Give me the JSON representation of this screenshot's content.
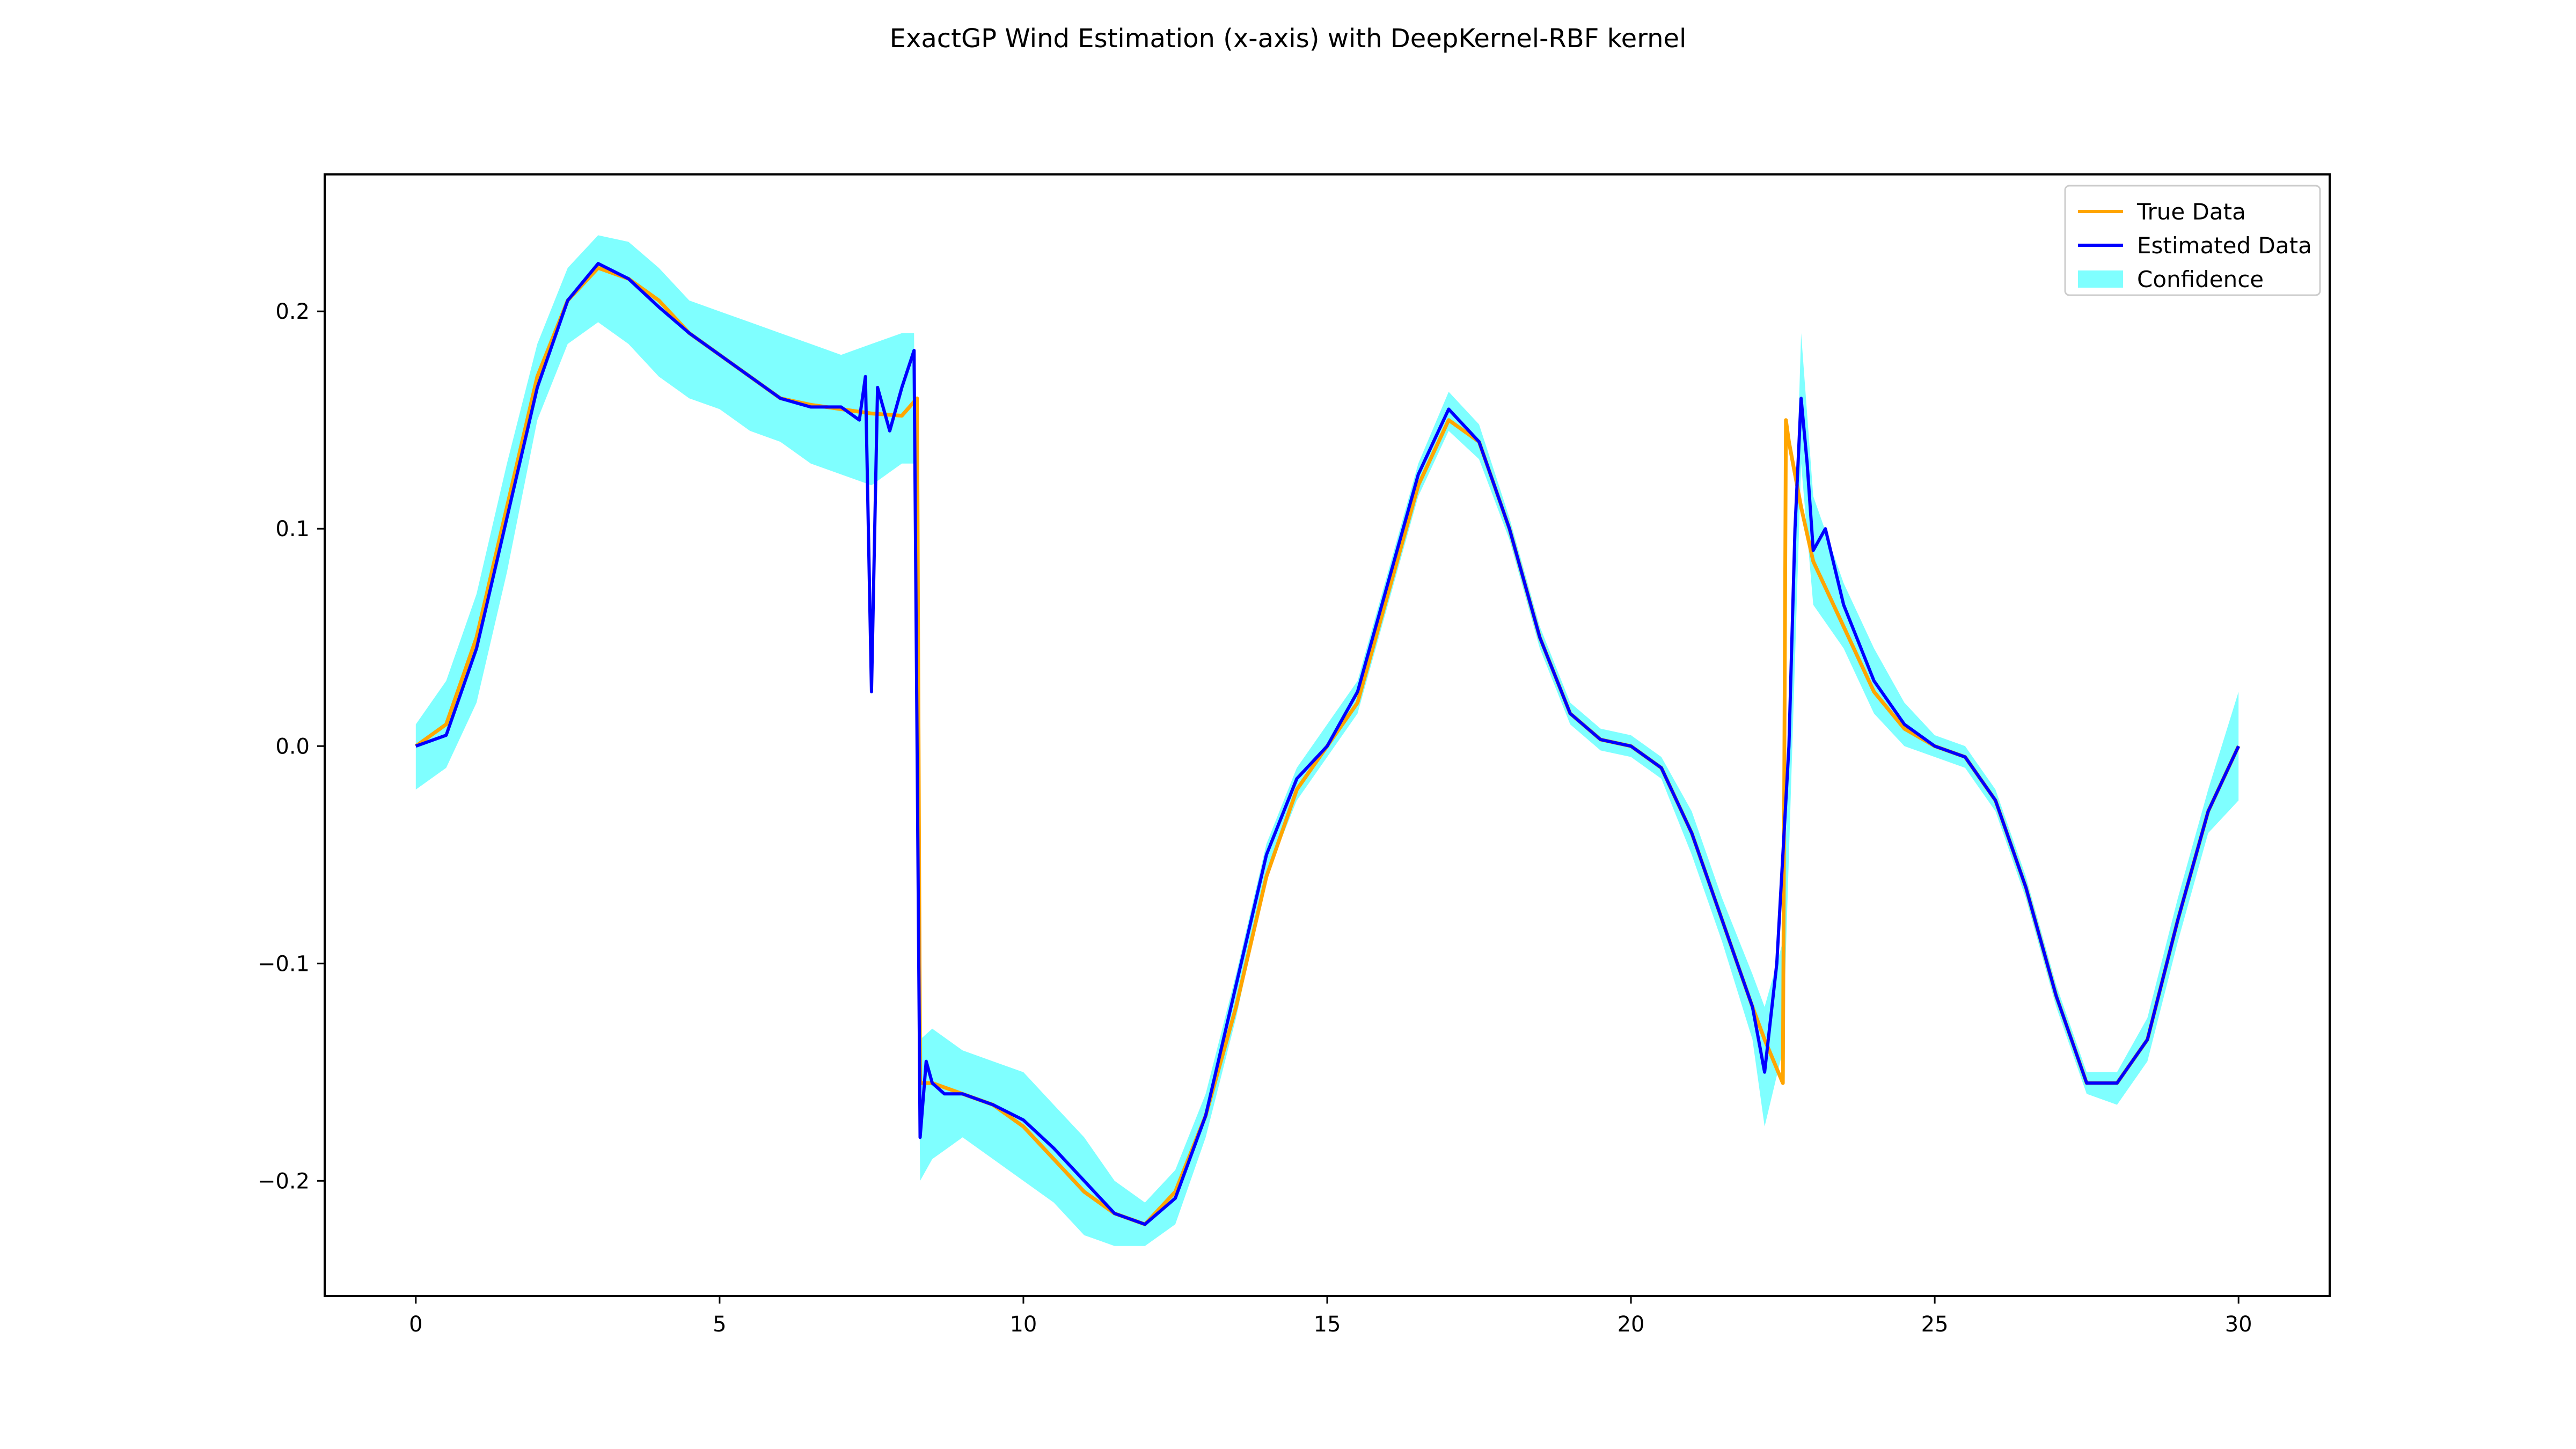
{
  "chart_data": {
    "type": "line",
    "title": "ExactGP Wind Estimation (x-axis) with DeepKernel-RBF kernel",
    "xlabel": "",
    "ylabel": "",
    "xlim": [
      -1.5,
      31.5
    ],
    "ylim": [
      -0.253,
      0.263
    ],
    "x_ticks": [
      0,
      5,
      10,
      15,
      20,
      25,
      30
    ],
    "x_tick_labels": [
      "0",
      "5",
      "10",
      "15",
      "20",
      "25",
      "30"
    ],
    "y_ticks": [
      -0.2,
      -0.1,
      0.0,
      0.1,
      0.2
    ],
    "y_tick_labels": [
      "−0.2",
      "−0.1",
      "0.0",
      "0.1",
      "0.2"
    ],
    "grid": false,
    "legend_position": "top-right",
    "series": [
      {
        "name": "True Data",
        "color": "#ffa500",
        "x": [
          0,
          0.5,
          1,
          1.5,
          2,
          2.5,
          3,
          3.5,
          4,
          4.5,
          5,
          5.5,
          6,
          6.5,
          7,
          7.5,
          8,
          8.25,
          8.3,
          8.5,
          9,
          9.5,
          10,
          10.5,
          11,
          11.5,
          12,
          12.5,
          13,
          13.5,
          14,
          14.5,
          15,
          15.5,
          16,
          16.5,
          17,
          17.5,
          18,
          18.5,
          19,
          19.5,
          20,
          20.5,
          21,
          21.5,
          22,
          22.2,
          22.5,
          22.55,
          22.6,
          22.8,
          23,
          23.5,
          24,
          24.5,
          25,
          25.5,
          26,
          26.5,
          27,
          27.5,
          28,
          28.5,
          29,
          29.5,
          30
        ],
        "y": [
          0.0,
          0.01,
          0.05,
          0.11,
          0.17,
          0.205,
          0.22,
          0.215,
          0.205,
          0.19,
          0.18,
          0.17,
          0.16,
          0.157,
          0.155,
          0.153,
          0.152,
          0.16,
          -0.155,
          -0.155,
          -0.16,
          -0.165,
          -0.175,
          -0.19,
          -0.205,
          -0.215,
          -0.22,
          -0.205,
          -0.17,
          -0.12,
          -0.06,
          -0.02,
          0.0,
          0.02,
          0.07,
          0.12,
          0.15,
          0.14,
          0.1,
          0.05,
          0.015,
          0.003,
          0.0,
          -0.01,
          -0.04,
          -0.08,
          -0.12,
          -0.135,
          -0.155,
          0.15,
          0.14,
          0.11,
          0.085,
          0.055,
          0.025,
          0.008,
          0.0,
          -0.005,
          -0.025,
          -0.065,
          -0.115,
          -0.155,
          -0.155,
          -0.135,
          -0.08,
          -0.03,
          0.0
        ]
      },
      {
        "name": "Estimated Data",
        "color": "#0000ff",
        "x": [
          0,
          0.5,
          1,
          1.5,
          2,
          2.5,
          3,
          3.5,
          4,
          4.5,
          5,
          5.5,
          6,
          6.5,
          7,
          7.3,
          7.4,
          7.5,
          7.6,
          7.8,
          8.0,
          8.2,
          8.3,
          8.4,
          8.5,
          8.7,
          9,
          9.5,
          10,
          10.5,
          11,
          11.5,
          12,
          12.5,
          13,
          13.5,
          14,
          14.5,
          15,
          15.5,
          16,
          16.5,
          17,
          17.5,
          18,
          18.5,
          19,
          19.5,
          20,
          20.5,
          21,
          21.5,
          22,
          22.2,
          22.4,
          22.6,
          22.7,
          22.8,
          22.9,
          23,
          23.2,
          23.5,
          24,
          24.5,
          25,
          25.5,
          26,
          26.5,
          27,
          27.5,
          28,
          28.5,
          29,
          29.5,
          30
        ],
        "y": [
          0.0,
          0.005,
          0.045,
          0.105,
          0.165,
          0.205,
          0.222,
          0.215,
          0.202,
          0.19,
          0.18,
          0.17,
          0.16,
          0.156,
          0.156,
          0.15,
          0.17,
          0.025,
          0.165,
          0.145,
          0.165,
          0.182,
          -0.18,
          -0.145,
          -0.155,
          -0.16,
          -0.16,
          -0.165,
          -0.172,
          -0.185,
          -0.2,
          -0.215,
          -0.22,
          -0.208,
          -0.17,
          -0.11,
          -0.05,
          -0.015,
          0.0,
          0.025,
          0.075,
          0.125,
          0.155,
          0.14,
          0.1,
          0.05,
          0.015,
          0.003,
          0.0,
          -0.01,
          -0.04,
          -0.08,
          -0.12,
          -0.15,
          -0.1,
          0.0,
          0.1,
          0.16,
          0.13,
          0.09,
          0.1,
          0.065,
          0.03,
          0.01,
          0.0,
          -0.005,
          -0.025,
          -0.065,
          -0.115,
          -0.155,
          -0.155,
          -0.135,
          -0.08,
          -0.03,
          0.0
        ]
      },
      {
        "name": "Confidence",
        "type": "band",
        "color": "#00ffff",
        "x": [
          0,
          0.5,
          1,
          1.5,
          2,
          2.5,
          3,
          3.5,
          4,
          4.5,
          5,
          5.5,
          6,
          6.5,
          7,
          7.5,
          8,
          8.2,
          8.3,
          8.5,
          9,
          9.5,
          10,
          10.5,
          11,
          11.5,
          12,
          12.5,
          13,
          13.5,
          14,
          14.5,
          15,
          15.5,
          16,
          16.5,
          17,
          17.5,
          18,
          18.5,
          19,
          19.5,
          20,
          20.5,
          21,
          21.5,
          22,
          22.2,
          22.5,
          22.8,
          23,
          23.5,
          24,
          24.5,
          25,
          25.5,
          26,
          26.5,
          27,
          27.5,
          28,
          28.5,
          29,
          29.5,
          30
        ],
        "upper": [
          0.01,
          0.03,
          0.07,
          0.13,
          0.185,
          0.22,
          0.235,
          0.232,
          0.22,
          0.205,
          0.2,
          0.195,
          0.19,
          0.185,
          0.18,
          0.185,
          0.19,
          0.19,
          -0.135,
          -0.13,
          -0.14,
          -0.145,
          -0.15,
          -0.165,
          -0.18,
          -0.2,
          -0.21,
          -0.195,
          -0.16,
          -0.105,
          -0.045,
          -0.01,
          0.01,
          0.03,
          0.08,
          0.13,
          0.163,
          0.148,
          0.105,
          0.055,
          0.02,
          0.008,
          0.005,
          -0.005,
          -0.03,
          -0.07,
          -0.105,
          -0.12,
          -0.09,
          0.19,
          0.115,
          0.075,
          0.045,
          0.02,
          0.005,
          0.0,
          -0.02,
          -0.06,
          -0.11,
          -0.15,
          -0.15,
          -0.125,
          -0.07,
          -0.02,
          0.025
        ],
        "lower": [
          -0.02,
          -0.01,
          0.02,
          0.08,
          0.15,
          0.185,
          0.195,
          0.185,
          0.17,
          0.16,
          0.155,
          0.145,
          0.14,
          0.13,
          0.125,
          0.12,
          0.13,
          0.13,
          -0.2,
          -0.19,
          -0.18,
          -0.19,
          -0.2,
          -0.21,
          -0.225,
          -0.23,
          -0.23,
          -0.22,
          -0.18,
          -0.125,
          -0.06,
          -0.025,
          -0.005,
          0.015,
          0.065,
          0.115,
          0.145,
          0.132,
          0.095,
          0.045,
          0.01,
          -0.002,
          -0.005,
          -0.015,
          -0.05,
          -0.09,
          -0.135,
          -0.175,
          -0.14,
          0.13,
          0.065,
          0.045,
          0.015,
          0.0,
          -0.005,
          -0.01,
          -0.03,
          -0.07,
          -0.12,
          -0.16,
          -0.165,
          -0.145,
          -0.09,
          -0.04,
          -0.025
        ]
      }
    ]
  }
}
